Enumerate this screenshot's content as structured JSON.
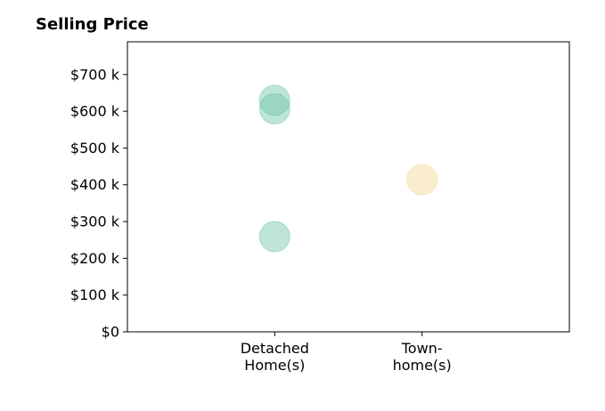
{
  "chart_data": {
    "type": "scatter",
    "title": "Selling Price",
    "categories": [
      "Detached\nHome(s)",
      "Town-\nhome(s)"
    ],
    "series": [
      {
        "color": "#66c2a5",
        "x": [
          "Detached\nHome(s)",
          "Detached\nHome(s)",
          "Detached\nHome(s)"
        ],
        "values": [
          630000,
          607000,
          259000
        ]
      },
      {
        "color": "#f2d58c",
        "x": [
          "Town-\nhome(s)"
        ],
        "values": [
          414000
        ]
      }
    ],
    "ylim": [
      0,
      789000
    ],
    "yticks": [
      {
        "value": 0,
        "label": "$0"
      },
      {
        "value": 100000,
        "label": "$100 k"
      },
      {
        "value": 200000,
        "label": "$200 k"
      },
      {
        "value": 300000,
        "label": "$300 k"
      },
      {
        "value": 400000,
        "label": "$400 k"
      },
      {
        "value": 500000,
        "label": "$500 k"
      },
      {
        "value": 600000,
        "label": "$600 k"
      },
      {
        "value": 700000,
        "label": "$700 k"
      }
    ]
  }
}
